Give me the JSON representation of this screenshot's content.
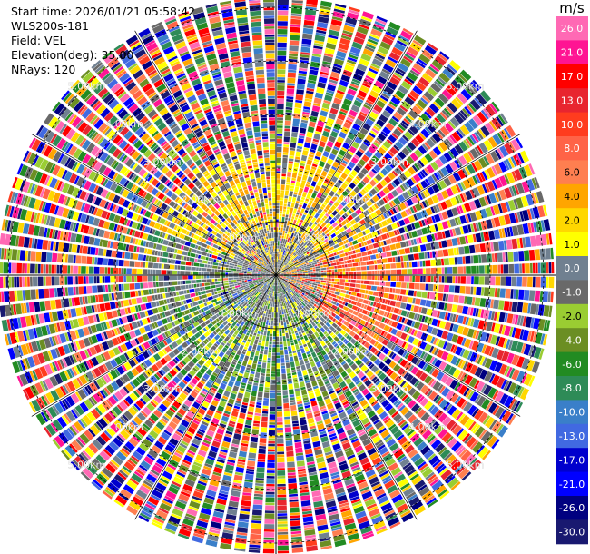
{
  "header": {
    "start_time": "Start time: 2026/01/21 05:58:42",
    "instrument": "WLS200s-181",
    "field": "Field: VEL",
    "elevation": "Elevation(deg): 35.00",
    "nrays": "NRays: 120"
  },
  "range_ring_labels": [
    "1.00km",
    "2.00km",
    "3.00km",
    "4.00km",
    "5.00km"
  ],
  "chart_data": {
    "type": "heatmap",
    "projection": "polar-ppi",
    "field": "VEL",
    "units": "m/s",
    "n_rays": 120,
    "range_rings_km": [
      1,
      2,
      3,
      4,
      5
    ],
    "max_range_km": 5.2,
    "colorbar": {
      "unit": "m/s",
      "ticks": [
        "26.0",
        "21.0",
        "17.0",
        "13.0",
        "10.0",
        "8.0",
        "6.0",
        "4.0",
        "2.0",
        "1.0",
        "0.0",
        "-1.0",
        "-2.0",
        "-4.0",
        "-6.0",
        "-8.0",
        "-10.0",
        "-13.0",
        "-17.0",
        "-21.0",
        "-26.0",
        "-30.0"
      ],
      "colors": [
        "#ff69b4",
        "#ff1493",
        "#ff0000",
        "#e8252f",
        "#ff3c1e",
        "#ff6347",
        "#ff7f50",
        "#ffa500",
        "#ffd700",
        "#ffff00",
        "#708090",
        "#696969",
        "#9acd32",
        "#6b8e23",
        "#228b22",
        "#2e8b57",
        "#3a7fc9",
        "#4169e1",
        "#0000cd",
        "#0000ff",
        "#000080",
        "#191970"
      ]
    },
    "near_field_pattern": {
      "description_free": true,
      "approach_velocity_sector_deg": [
        200,
        320
      ],
      "recede_velocity_sector_deg": [
        20,
        160
      ]
    }
  }
}
